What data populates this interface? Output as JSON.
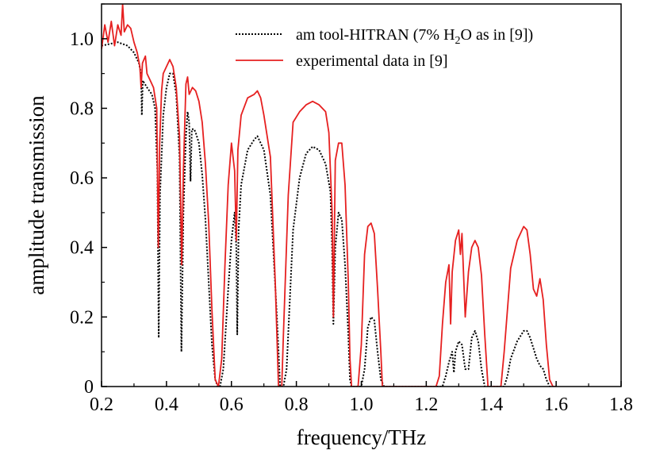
{
  "chart_data": {
    "type": "line",
    "xlabel": "frequency/THz",
    "ylabel": "amplitude transmission",
    "xlim": [
      0.2,
      1.8
    ],
    "ylim": [
      0,
      1.1
    ],
    "x_ticks": [
      "0.2",
      "0.4",
      "0.6",
      "0.8",
      "1.0",
      "1.2",
      "1.4",
      "1.6",
      "1.8"
    ],
    "y_ticks": [
      "0",
      "0.2",
      "0.4",
      "0.6",
      "0.8",
      "1.0"
    ],
    "grid": false,
    "legend_position": "top-right",
    "series": [
      {
        "name": "am tool-HITRAN (7% H2O as in [9])",
        "legend_label": {
          "prefix": "am tool-HITRAN (7% H",
          "sub": "2",
          "suffix": "O as in [9])"
        },
        "color": "#000000",
        "style": "dotted",
        "points": [
          [
            0.2,
            0.98
          ],
          [
            0.25,
            0.99
          ],
          [
            0.28,
            0.98
          ],
          [
            0.3,
            0.96
          ],
          [
            0.315,
            0.93
          ],
          [
            0.322,
            0.9
          ],
          [
            0.324,
            0.78
          ],
          [
            0.327,
            0.88
          ],
          [
            0.34,
            0.86
          ],
          [
            0.355,
            0.84
          ],
          [
            0.365,
            0.8
          ],
          [
            0.372,
            0.62
          ],
          [
            0.376,
            0.14
          ],
          [
            0.38,
            0.55
          ],
          [
            0.39,
            0.78
          ],
          [
            0.4,
            0.86
          ],
          [
            0.41,
            0.9
          ],
          [
            0.42,
            0.9
          ],
          [
            0.43,
            0.84
          ],
          [
            0.44,
            0.66
          ],
          [
            0.446,
            0.1
          ],
          [
            0.452,
            0.5
          ],
          [
            0.46,
            0.72
          ],
          [
            0.465,
            0.79
          ],
          [
            0.47,
            0.76
          ],
          [
            0.474,
            0.59
          ],
          [
            0.478,
            0.74
          ],
          [
            0.485,
            0.74
          ],
          [
            0.49,
            0.73
          ],
          [
            0.5,
            0.7
          ],
          [
            0.51,
            0.61
          ],
          [
            0.52,
            0.48
          ],
          [
            0.53,
            0.3
          ],
          [
            0.54,
            0.12
          ],
          [
            0.55,
            0.02
          ],
          [
            0.558,
            0.0
          ],
          [
            0.565,
            0.0
          ],
          [
            0.575,
            0.05
          ],
          [
            0.59,
            0.28
          ],
          [
            0.6,
            0.42
          ],
          [
            0.61,
            0.5
          ],
          [
            0.615,
            0.4
          ],
          [
            0.618,
            0.15
          ],
          [
            0.622,
            0.45
          ],
          [
            0.63,
            0.58
          ],
          [
            0.65,
            0.68
          ],
          [
            0.67,
            0.71
          ],
          [
            0.68,
            0.72
          ],
          [
            0.7,
            0.68
          ],
          [
            0.72,
            0.55
          ],
          [
            0.74,
            0.2
          ],
          [
            0.75,
            0.0
          ],
          [
            0.76,
            0.0
          ],
          [
            0.77,
            0.05
          ],
          [
            0.79,
            0.45
          ],
          [
            0.81,
            0.6
          ],
          [
            0.83,
            0.67
          ],
          [
            0.85,
            0.69
          ],
          [
            0.87,
            0.68
          ],
          [
            0.89,
            0.64
          ],
          [
            0.905,
            0.56
          ],
          [
            0.91,
            0.4
          ],
          [
            0.914,
            0.18
          ],
          [
            0.92,
            0.4
          ],
          [
            0.93,
            0.5
          ],
          [
            0.94,
            0.48
          ],
          [
            0.95,
            0.35
          ],
          [
            0.96,
            0.15
          ],
          [
            0.965,
            0.02
          ],
          [
            0.97,
            0.0
          ],
          [
            1.0,
            0.0
          ],
          [
            1.01,
            0.05
          ],
          [
            1.02,
            0.17
          ],
          [
            1.03,
            0.2
          ],
          [
            1.04,
            0.19
          ],
          [
            1.05,
            0.1
          ],
          [
            1.06,
            0.02
          ],
          [
            1.07,
            0.0
          ],
          [
            1.25,
            0.0
          ],
          [
            1.26,
            0.03
          ],
          [
            1.27,
            0.07
          ],
          [
            1.28,
            0.1
          ],
          [
            1.285,
            0.04
          ],
          [
            1.29,
            0.1
          ],
          [
            1.3,
            0.13
          ],
          [
            1.31,
            0.12
          ],
          [
            1.32,
            0.05
          ],
          [
            1.33,
            0.05
          ],
          [
            1.34,
            0.14
          ],
          [
            1.35,
            0.16
          ],
          [
            1.36,
            0.13
          ],
          [
            1.37,
            0.05
          ],
          [
            1.38,
            0.0
          ],
          [
            1.44,
            0.0
          ],
          [
            1.45,
            0.03
          ],
          [
            1.46,
            0.08
          ],
          [
            1.48,
            0.13
          ],
          [
            1.5,
            0.16
          ],
          [
            1.51,
            0.16
          ],
          [
            1.52,
            0.14
          ],
          [
            1.54,
            0.08
          ],
          [
            1.55,
            0.06
          ],
          [
            1.56,
            0.05
          ],
          [
            1.57,
            0.02
          ],
          [
            1.58,
            0.0
          ],
          [
            1.6,
            0.0
          ]
        ]
      },
      {
        "name": "experimental data in [9]",
        "color": "#e62020",
        "style": "solid",
        "points": [
          [
            0.2,
            0.97
          ],
          [
            0.21,
            1.04
          ],
          [
            0.22,
            0.99
          ],
          [
            0.23,
            1.05
          ],
          [
            0.24,
            0.98
          ],
          [
            0.25,
            1.04
          ],
          [
            0.26,
            1.01
          ],
          [
            0.265,
            1.1
          ],
          [
            0.27,
            1.02
          ],
          [
            0.28,
            1.04
          ],
          [
            0.29,
            1.03
          ],
          [
            0.3,
            0.99
          ],
          [
            0.31,
            0.96
          ],
          [
            0.318,
            0.92
          ],
          [
            0.322,
            0.86
          ],
          [
            0.326,
            0.93
          ],
          [
            0.335,
            0.95
          ],
          [
            0.34,
            0.9
          ],
          [
            0.35,
            0.88
          ],
          [
            0.36,
            0.86
          ],
          [
            0.37,
            0.8
          ],
          [
            0.375,
            0.4
          ],
          [
            0.379,
            0.7
          ],
          [
            0.385,
            0.85
          ],
          [
            0.39,
            0.9
          ],
          [
            0.4,
            0.92
          ],
          [
            0.41,
            0.94
          ],
          [
            0.42,
            0.92
          ],
          [
            0.43,
            0.86
          ],
          [
            0.44,
            0.72
          ],
          [
            0.447,
            0.35
          ],
          [
            0.452,
            0.62
          ],
          [
            0.46,
            0.87
          ],
          [
            0.465,
            0.89
          ],
          [
            0.47,
            0.84
          ],
          [
            0.48,
            0.86
          ],
          [
            0.49,
            0.85
          ],
          [
            0.5,
            0.82
          ],
          [
            0.51,
            0.76
          ],
          [
            0.52,
            0.64
          ],
          [
            0.53,
            0.47
          ],
          [
            0.54,
            0.22
          ],
          [
            0.55,
            0.02
          ],
          [
            0.56,
            0.0
          ],
          [
            0.57,
            0.08
          ],
          [
            0.58,
            0.35
          ],
          [
            0.59,
            0.58
          ],
          [
            0.6,
            0.7
          ],
          [
            0.61,
            0.62
          ],
          [
            0.615,
            0.42
          ],
          [
            0.62,
            0.68
          ],
          [
            0.63,
            0.78
          ],
          [
            0.65,
            0.83
          ],
          [
            0.67,
            0.84
          ],
          [
            0.68,
            0.85
          ],
          [
            0.69,
            0.83
          ],
          [
            0.7,
            0.78
          ],
          [
            0.72,
            0.66
          ],
          [
            0.735,
            0.3
          ],
          [
            0.745,
            0.0
          ],
          [
            0.755,
            0.0
          ],
          [
            0.76,
            0.15
          ],
          [
            0.775,
            0.55
          ],
          [
            0.79,
            0.76
          ],
          [
            0.81,
            0.79
          ],
          [
            0.83,
            0.81
          ],
          [
            0.85,
            0.82
          ],
          [
            0.87,
            0.81
          ],
          [
            0.89,
            0.79
          ],
          [
            0.9,
            0.73
          ],
          [
            0.91,
            0.5
          ],
          [
            0.914,
            0.2
          ],
          [
            0.92,
            0.65
          ],
          [
            0.93,
            0.7
          ],
          [
            0.94,
            0.7
          ],
          [
            0.95,
            0.58
          ],
          [
            0.96,
            0.3
          ],
          [
            0.965,
            0.08
          ],
          [
            0.97,
            0.0
          ],
          [
            0.99,
            0.0
          ],
          [
            1.0,
            0.12
          ],
          [
            1.01,
            0.38
          ],
          [
            1.02,
            0.46
          ],
          [
            1.03,
            0.47
          ],
          [
            1.04,
            0.44
          ],
          [
            1.05,
            0.28
          ],
          [
            1.06,
            0.1
          ],
          [
            1.065,
            0.0
          ],
          [
            1.23,
            0.0
          ],
          [
            1.24,
            0.03
          ],
          [
            1.25,
            0.18
          ],
          [
            1.26,
            0.3
          ],
          [
            1.27,
            0.35
          ],
          [
            1.275,
            0.18
          ],
          [
            1.28,
            0.33
          ],
          [
            1.29,
            0.42
          ],
          [
            1.3,
            0.45
          ],
          [
            1.305,
            0.38
          ],
          [
            1.31,
            0.44
          ],
          [
            1.32,
            0.2
          ],
          [
            1.33,
            0.33
          ],
          [
            1.34,
            0.4
          ],
          [
            1.35,
            0.42
          ],
          [
            1.36,
            0.4
          ],
          [
            1.37,
            0.32
          ],
          [
            1.38,
            0.15
          ],
          [
            1.39,
            0.0
          ],
          [
            1.43,
            0.0
          ],
          [
            1.44,
            0.1
          ],
          [
            1.46,
            0.34
          ],
          [
            1.48,
            0.42
          ],
          [
            1.5,
            0.46
          ],
          [
            1.51,
            0.45
          ],
          [
            1.52,
            0.38
          ],
          [
            1.53,
            0.28
          ],
          [
            1.54,
            0.26
          ],
          [
            1.55,
            0.31
          ],
          [
            1.56,
            0.25
          ],
          [
            1.57,
            0.12
          ],
          [
            1.58,
            0.02
          ],
          [
            1.59,
            0.0
          ],
          [
            1.6,
            0.0
          ]
        ]
      }
    ]
  }
}
